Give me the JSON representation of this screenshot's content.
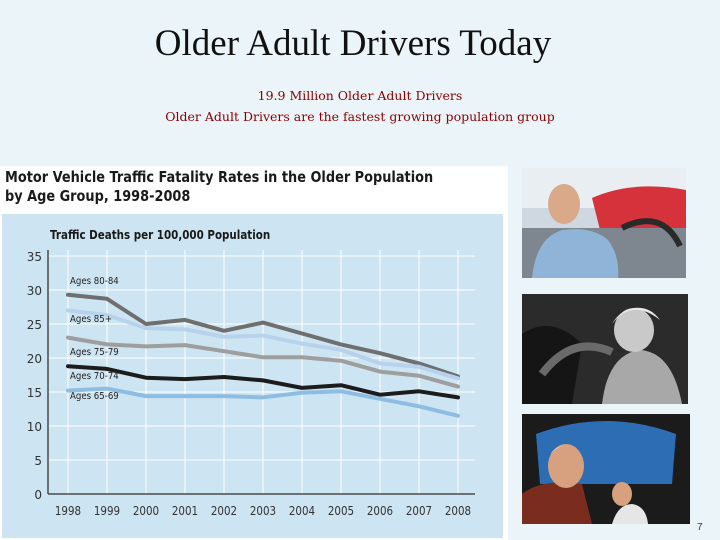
{
  "slide": {
    "title": "Older Adult Drivers Today",
    "subtitle_1": "19.9 Million Older Adult Drivers",
    "subtitle_2": "Older Adult Drivers are the fastest growing population group",
    "page_number": "7"
  },
  "chart_data": {
    "type": "line",
    "title": "Motor Vehicle Traffic Fatality Rates in the Older Population by Age Group, 1998-2008",
    "ylabel": "Traffic Deaths per 100,000 Population",
    "xlabel": "",
    "x": [
      "1998",
      "1999",
      "2000",
      "2001",
      "2002",
      "2003",
      "2004",
      "2005",
      "2006",
      "2007",
      "2008"
    ],
    "yticks": [
      0,
      5,
      10,
      15,
      20,
      25,
      30,
      35
    ],
    "ylim": [
      0,
      35
    ],
    "grid": true,
    "series": [
      {
        "name": "Ages 80-84",
        "color": "#6f6f6f",
        "values": [
          29.3,
          28.7,
          25.0,
          25.6,
          24.0,
          25.2,
          23.6,
          22.0,
          20.7,
          19.2,
          17.3
        ]
      },
      {
        "name": "Ages 85+",
        "color": "#b9d2ec",
        "values": [
          27.0,
          26.3,
          24.4,
          24.2,
          23.1,
          23.3,
          22.1,
          21.2,
          19.2,
          18.7,
          17.0
        ]
      },
      {
        "name": "Ages 75-79",
        "color": "#9e9e9e",
        "values": [
          23.0,
          22.0,
          21.7,
          21.9,
          21.0,
          20.1,
          20.1,
          19.6,
          18.0,
          17.4,
          15.8
        ]
      },
      {
        "name": "Ages 70-74",
        "color": "#1c1c1c",
        "values": [
          18.8,
          18.4,
          17.1,
          16.9,
          17.2,
          16.7,
          15.6,
          16.0,
          14.6,
          15.1,
          14.2
        ]
      },
      {
        "name": "Ages 65-69",
        "color": "#8ebde3",
        "values": [
          15.2,
          15.5,
          14.4,
          14.4,
          14.4,
          14.2,
          14.9,
          15.1,
          14.0,
          12.9,
          11.5
        ]
      }
    ]
  },
  "photos": [
    {
      "name": "photo-older-man-driving",
      "colors": {
        "sky": "#cfd8e0",
        "car": "#d5323c",
        "shirt": "#8fb4d8",
        "skin": "#d9a98a"
      }
    },
    {
      "name": "photo-older-woman-driving-bw",
      "colors": {
        "bg": "#2b2b2b",
        "hair": "#e8e8e8",
        "skin": "#c9c9c9"
      }
    },
    {
      "name": "photo-older-passengers-car",
      "colors": {
        "sky": "#2c6db3",
        "interior": "#1b1b1b",
        "shirt": "#7a2d1f",
        "skin": "#d7a07e"
      }
    }
  ]
}
